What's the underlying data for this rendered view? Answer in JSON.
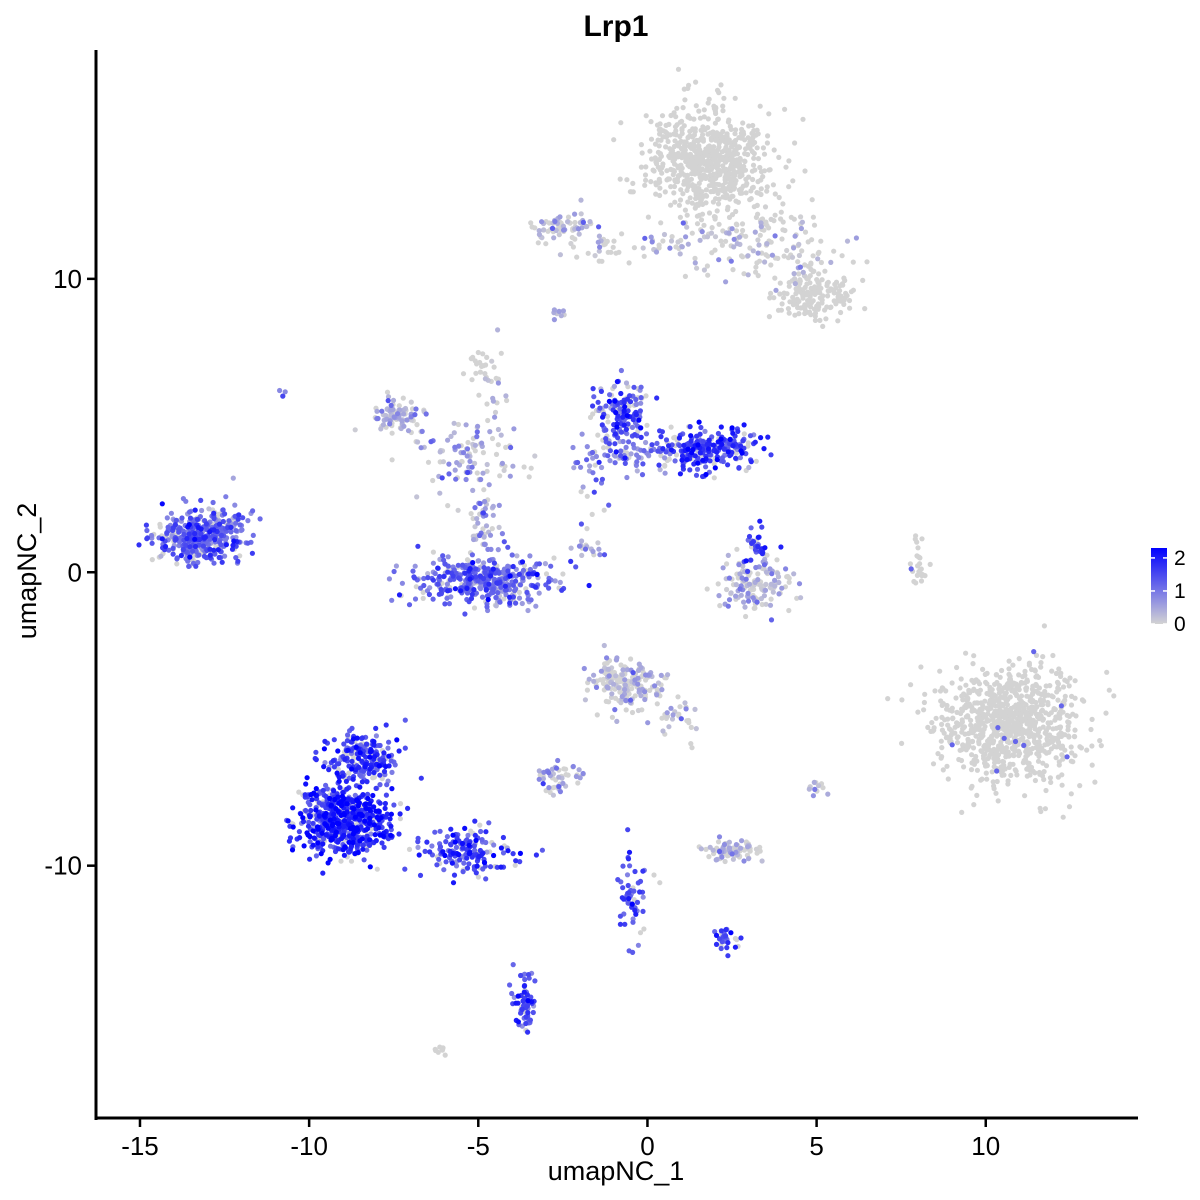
{
  "chart_data": {
    "type": "scatter",
    "title": "Lrp1",
    "xlabel": "umapNC_1",
    "ylabel": "umapNC_2",
    "xlim": [
      -16.3,
      14.5
    ],
    "ylim": [
      -18.6,
      17.8
    ],
    "xticks": [
      -15,
      -10,
      -5,
      0,
      5,
      10
    ],
    "xtick_labels": [
      "-15",
      "-10",
      "-5",
      "0",
      "5",
      "10"
    ],
    "yticks": [
      -10,
      0,
      10
    ],
    "ytick_labels": [
      "-10",
      "0",
      "10"
    ],
    "grid": false,
    "legend": {
      "position": "right",
      "type": "colorbar",
      "labels": [
        "2",
        "1",
        "0"
      ],
      "values": [
        2,
        1,
        0
      ],
      "low_color": "#d3d3d3",
      "high_color": "#0000ff"
    },
    "colors": {
      "low": "#d3d3d3",
      "high": "#0000ff"
    },
    "clusters": [
      {
        "center": [
          1.8,
          14.0
        ],
        "spread": [
          1.2,
          1.2
        ],
        "n": 700,
        "expr": 0.0
      },
      {
        "center": [
          3.5,
          11.2
        ],
        "spread": [
          1.6,
          0.9
        ],
        "n": 150,
        "expr": 0.02
      },
      {
        "center": [
          5.0,
          9.5
        ],
        "spread": [
          0.8,
          0.6
        ],
        "n": 160,
        "expr": 0.0
      },
      {
        "center": [
          -2.5,
          11.8
        ],
        "spread": [
          0.6,
          0.3
        ],
        "n": 70,
        "expr": 0.1
      },
      {
        "center": [
          -0.5,
          11.2
        ],
        "spread": [
          1.5,
          0.4
        ],
        "n": 50,
        "expr": 0.02
      },
      {
        "center": [
          -7.5,
          5.4
        ],
        "spread": [
          0.5,
          0.4
        ],
        "n": 90,
        "expr": 0.3
      },
      {
        "center": [
          -5.3,
          4.0
        ],
        "spread": [
          1.0,
          0.9
        ],
        "n": 100,
        "expr": 0.4
      },
      {
        "center": [
          -4.6,
          6.3
        ],
        "spread": [
          0.3,
          1.0
        ],
        "n": 25,
        "expr": 0.2
      },
      {
        "center": [
          -4.8,
          -0.3
        ],
        "spread": [
          1.3,
          0.55
        ],
        "n": 420,
        "expr": 1.1
      },
      {
        "center": [
          -4.8,
          1.5
        ],
        "spread": [
          0.3,
          0.9
        ],
        "n": 50,
        "expr": 0.5
      },
      {
        "center": [
          -0.8,
          5.4
        ],
        "spread": [
          0.5,
          0.8
        ],
        "n": 150,
        "expr": 1.4
      },
      {
        "center": [
          1.7,
          4.2
        ],
        "spread": [
          1.0,
          0.5
        ],
        "n": 260,
        "expr": 1.6
      },
      {
        "center": [
          -0.5,
          4.0
        ],
        "spread": [
          1.0,
          0.4
        ],
        "n": 60,
        "expr": 1.0
      },
      {
        "center": [
          -1.8,
          3.0
        ],
        "spread": [
          0.5,
          1.0
        ],
        "n": 25,
        "expr": 0.9
      },
      {
        "center": [
          -13.3,
          1.2
        ],
        "spread": [
          0.8,
          0.6
        ],
        "n": 360,
        "expr": 1.2
      },
      {
        "center": [
          -12.2,
          1.6
        ],
        "spread": [
          0.4,
          0.7
        ],
        "n": 40,
        "expr": 0.9
      },
      {
        "center": [
          3.2,
          -0.5
        ],
        "spread": [
          0.7,
          0.6
        ],
        "n": 140,
        "expr": 0.25
      },
      {
        "center": [
          3.2,
          0.8
        ],
        "spread": [
          0.3,
          0.5
        ],
        "n": 35,
        "expr": 1.5
      },
      {
        "center": [
          -1.8,
          0.9
        ],
        "spread": [
          0.4,
          0.2
        ],
        "n": 15,
        "expr": 0.6
      },
      {
        "center": [
          8.0,
          0.4
        ],
        "spread": [
          0.2,
          0.6
        ],
        "n": 25,
        "expr": 0.0
      },
      {
        "center": [
          10.7,
          -5.2
        ],
        "spread": [
          1.4,
          1.3
        ],
        "n": 900,
        "expr": 0.0
      },
      {
        "center": [
          -0.6,
          -3.7
        ],
        "spread": [
          0.8,
          0.6
        ],
        "n": 180,
        "expr": 0.1
      },
      {
        "center": [
          0.9,
          -5.0
        ],
        "spread": [
          0.4,
          0.5
        ],
        "n": 30,
        "expr": 0.1
      },
      {
        "center": [
          -9.0,
          -8.4
        ],
        "spread": [
          0.9,
          0.8
        ],
        "n": 620,
        "expr": 1.8
      },
      {
        "center": [
          -8.4,
          -6.3
        ],
        "spread": [
          0.7,
          0.6
        ],
        "n": 200,
        "expr": 1.6
      },
      {
        "center": [
          -5.4,
          -9.5
        ],
        "spread": [
          1.0,
          0.5
        ],
        "n": 160,
        "expr": 1.6
      },
      {
        "center": [
          -2.6,
          -7.0
        ],
        "spread": [
          0.5,
          0.35
        ],
        "n": 50,
        "expr": 0.3
      },
      {
        "center": [
          2.5,
          -9.5
        ],
        "spread": [
          0.5,
          0.2
        ],
        "n": 90,
        "expr": 0.05
      },
      {
        "center": [
          -0.5,
          -11.0
        ],
        "spread": [
          0.3,
          1.2
        ],
        "n": 60,
        "expr": 1.4
      },
      {
        "center": [
          2.3,
          -12.6
        ],
        "spread": [
          0.3,
          0.25
        ],
        "n": 30,
        "expr": 1.5
      },
      {
        "center": [
          -3.6,
          -14.6
        ],
        "spread": [
          0.2,
          0.7
        ],
        "n": 70,
        "expr": 1.4
      },
      {
        "center": [
          5.0,
          -7.3
        ],
        "spread": [
          0.2,
          0.25
        ],
        "n": 12,
        "expr": 0.4
      },
      {
        "center": [
          -6.1,
          -16.3
        ],
        "spread": [
          0.2,
          0.1
        ],
        "n": 8,
        "expr": 0.0
      },
      {
        "center": [
          -5.0,
          7.2
        ],
        "spread": [
          0.2,
          0.3
        ],
        "n": 15,
        "expr": 0.0
      },
      {
        "center": [
          -2.7,
          8.8
        ],
        "spread": [
          0.2,
          0.2
        ],
        "n": 8,
        "expr": 0.1
      },
      {
        "center": [
          -10.7,
          6.1
        ],
        "spread": [
          0.1,
          0.1
        ],
        "n": 4,
        "expr": 0.8
      }
    ]
  }
}
